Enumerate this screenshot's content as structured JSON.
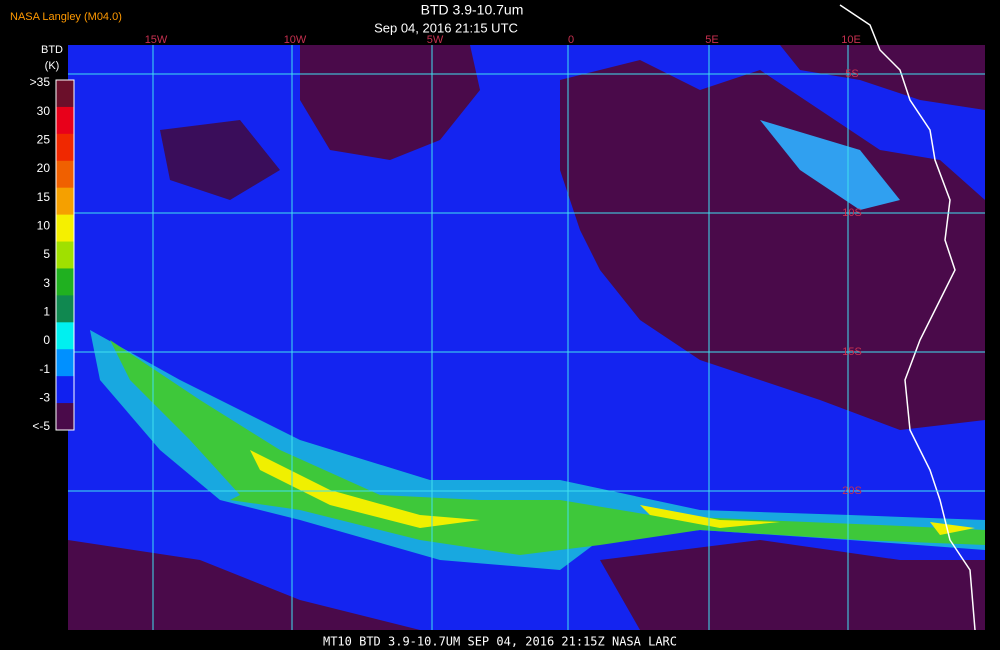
{
  "header": {
    "source": "NASA Langley (M04.0)",
    "title": "BTD 3.9-10.7um",
    "subtitle": "Sep 04, 2016 21:15 UTC"
  },
  "legend": {
    "title": "BTD",
    "unit": "(K)",
    "labels": [
      ">35",
      "30",
      "25",
      "20",
      "15",
      "10",
      "5",
      "3",
      "1",
      "0",
      "-1",
      "-3",
      "<-5"
    ],
    "colors": [
      "#6b0f2a",
      "#e8001a",
      "#f02800",
      "#f06000",
      "#f5a000",
      "#f5f000",
      "#a0e000",
      "#20b020",
      "#108850",
      "#00f0f0",
      "#0090ff",
      "#1020f0",
      "#4a0a4a"
    ]
  },
  "map": {
    "longitudes": [
      "15W",
      "10W",
      "5W",
      "0",
      "5E",
      "10E"
    ],
    "latitudes": [
      "5S",
      "10S",
      "15S",
      "20S"
    ]
  },
  "footer": "MT10   BTD 3.9-10.7UM   SEP 04, 2016 21:15Z   NASA LARC"
}
